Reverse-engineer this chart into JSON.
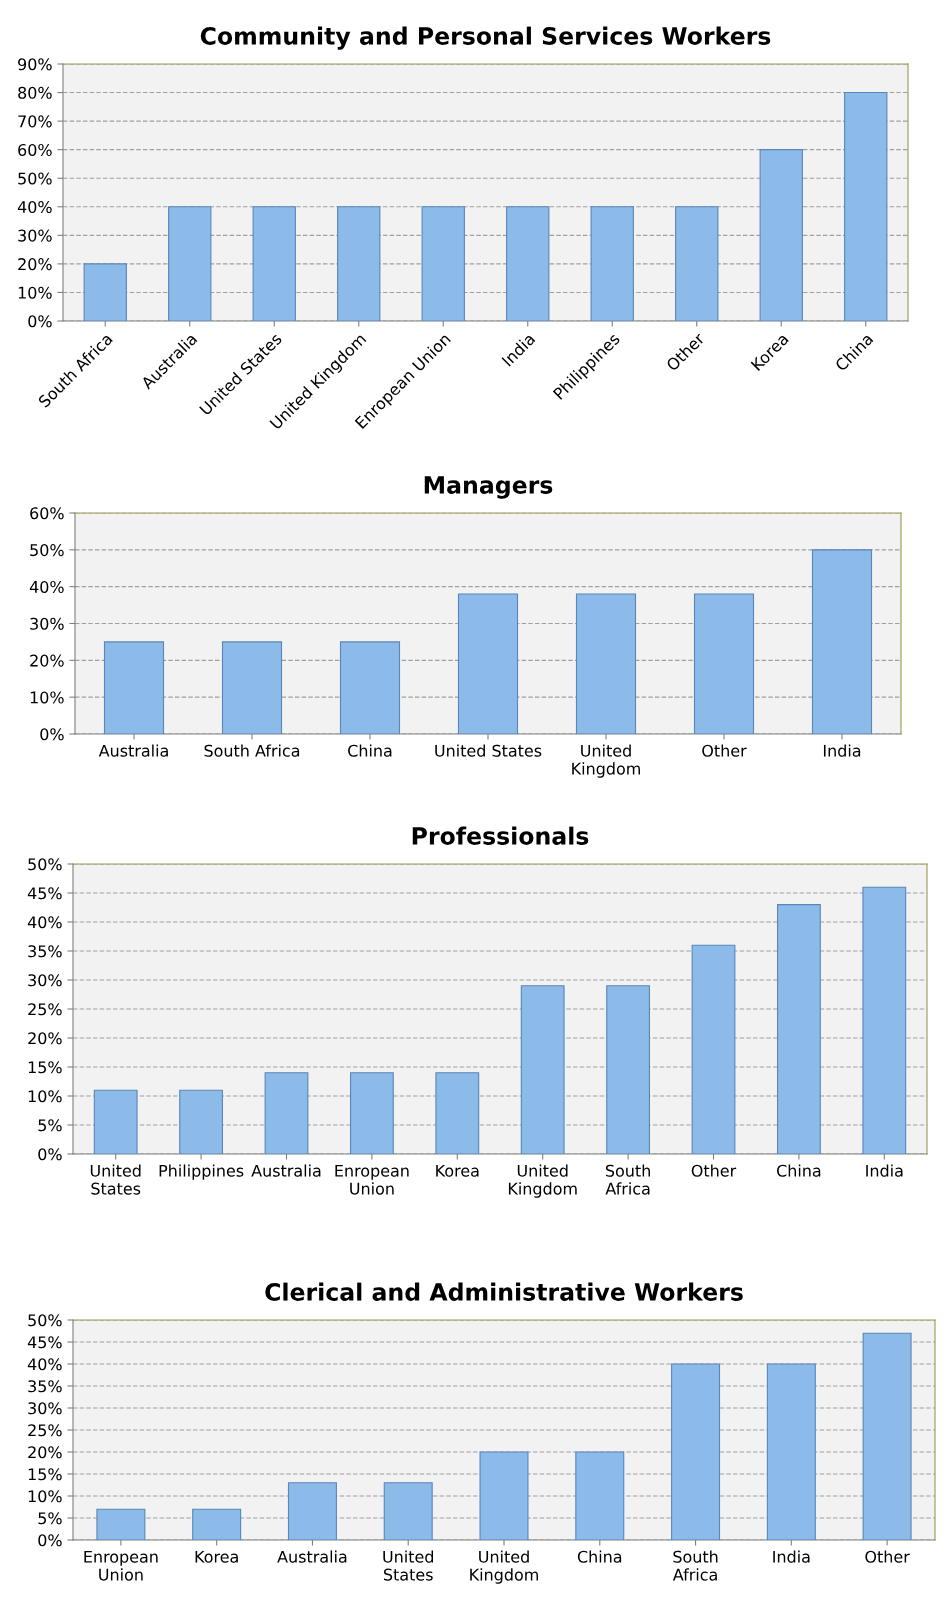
{
  "chart_data": [
    {
      "type": "bar",
      "title": "Community and Personal Services Workers",
      "color": "#8cbbea",
      "grid": "y",
      "legend": false,
      "categories": [
        "South Africa",
        "Australia",
        "United States",
        "United Kingdom",
        "Enropean Union",
        "India",
        "Philippines",
        "Other",
        "Korea",
        "China"
      ],
      "values": [
        20,
        40,
        40,
        40,
        40,
        40,
        40,
        40,
        60,
        80
      ],
      "ylim": [
        0,
        90
      ],
      "yticks": [
        {
          "value": 0,
          "label": "0%"
        },
        {
          "value": 10,
          "label": "10%"
        },
        {
          "value": 20,
          "label": "20%"
        },
        {
          "value": 30,
          "label": "30%"
        },
        {
          "value": 40,
          "label": "40%"
        },
        {
          "value": 50,
          "label": "50%"
        },
        {
          "value": 60,
          "label": "60%"
        },
        {
          "value": 70,
          "label": "70%"
        },
        {
          "value": 80,
          "label": "80%"
        },
        {
          "value": 90,
          "label": "90%"
        }
      ]
    },
    {
      "type": "bar",
      "title": "Managers",
      "color": "#8cbbea",
      "grid": "y",
      "legend": false,
      "categories": [
        "Australia",
        "South Africa",
        "China",
        "United States",
        "United\nKingdom",
        "Other",
        "India"
      ],
      "values": [
        25,
        25,
        25,
        38,
        38,
        38,
        50
      ],
      "ylim": [
        0,
        60
      ],
      "yticks": [
        {
          "value": 0,
          "label": "0%"
        },
        {
          "value": 10,
          "label": "10%"
        },
        {
          "value": 20,
          "label": "20%"
        },
        {
          "value": 30,
          "label": "30%"
        },
        {
          "value": 40,
          "label": "40%"
        },
        {
          "value": 50,
          "label": "50%"
        },
        {
          "value": 60,
          "label": "60%"
        }
      ]
    },
    {
      "type": "bar",
      "title": "Professionals",
      "color": "#8cbbea",
      "grid": "y",
      "legend": false,
      "categories": [
        "United\nStates",
        "Philippines",
        "Australia",
        "Enropean\nUnion",
        "Korea",
        "United\nKingdom",
        "South\nAfrica",
        "Other",
        "China",
        "India"
      ],
      "values": [
        11,
        11,
        14,
        14,
        14,
        29,
        29,
        36,
        43,
        46
      ],
      "ylim": [
        0,
        50
      ],
      "yticks": [
        {
          "value": 0,
          "label": "0%"
        },
        {
          "value": 5,
          "label": "5%"
        },
        {
          "value": 10,
          "label": "10%"
        },
        {
          "value": 15,
          "label": "15%"
        },
        {
          "value": 20,
          "label": "20%"
        },
        {
          "value": 25,
          "label": "25%"
        },
        {
          "value": 30,
          "label": "30%"
        },
        {
          "value": 35,
          "label": "35%"
        },
        {
          "value": 40,
          "label": "40%"
        },
        {
          "value": 45,
          "label": "45%"
        },
        {
          "value": 50,
          "label": "50%"
        }
      ]
    },
    {
      "type": "bar",
      "title": "Clerical and Administrative Workers",
      "color": "#8cbbea",
      "grid": "y",
      "legend": false,
      "categories": [
        "Enropean\nUnion",
        "Korea",
        "Australia",
        "United\nStates",
        "United\nKingdom",
        "China",
        "South\nAfrica",
        "India",
        "Other"
      ],
      "values": [
        7,
        7,
        13,
        13,
        20,
        20,
        40,
        40,
        47
      ],
      "ylim": [
        0,
        50
      ],
      "yticks": [
        {
          "value": 0,
          "label": "0%"
        },
        {
          "value": 5,
          "label": "5%"
        },
        {
          "value": 10,
          "label": "10%"
        },
        {
          "value": 15,
          "label": "15%"
        },
        {
          "value": 20,
          "label": "20%"
        },
        {
          "value": 25,
          "label": "25%"
        },
        {
          "value": 30,
          "label": "30%"
        },
        {
          "value": 35,
          "label": "35%"
        },
        {
          "value": 40,
          "label": "40%"
        },
        {
          "value": 45,
          "label": "45%"
        },
        {
          "value": 50,
          "label": "50%"
        }
      ]
    }
  ]
}
